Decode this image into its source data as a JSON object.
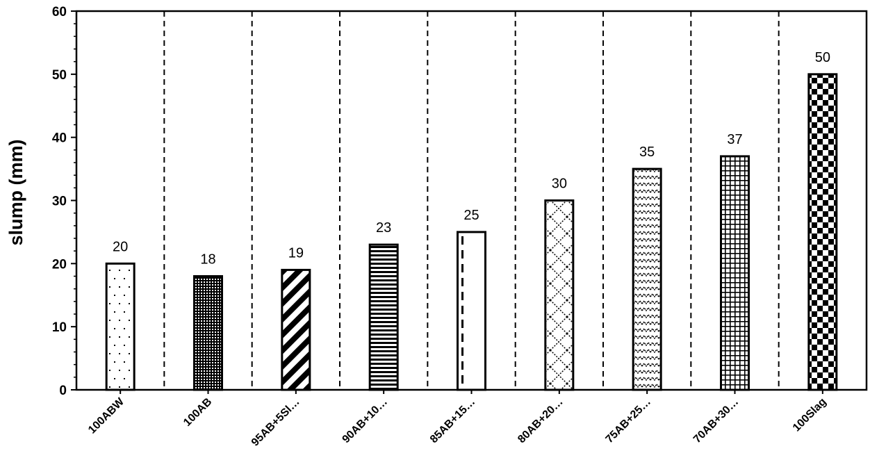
{
  "chart_data": {
    "type": "bar",
    "title": "",
    "xlabel": "",
    "ylabel": "slump (mm)",
    "ylim": [
      0,
      60
    ],
    "yticks": [
      0,
      10,
      20,
      30,
      40,
      50,
      60
    ],
    "categories": [
      "100ABW",
      "100AB",
      "95AB+5Sl…",
      "90AB+10…",
      "85AB+15…",
      "80AB+20…",
      "75AB+25…",
      "70AB+30…",
      "100Slag"
    ],
    "values": [
      20,
      18,
      19,
      23,
      25,
      30,
      35,
      37,
      50
    ],
    "data_labels": [
      "20",
      "18",
      "19",
      "23",
      "25",
      "30",
      "35",
      "37",
      "50"
    ],
    "grid": "vertical dashed separators between categories",
    "bar_patterns": [
      "dots",
      "dense-dots",
      "diagonal-stripes",
      "horizontal-lines",
      "dashed-vertical",
      "zigzag",
      "wave",
      "grid",
      "checkerboard"
    ]
  }
}
